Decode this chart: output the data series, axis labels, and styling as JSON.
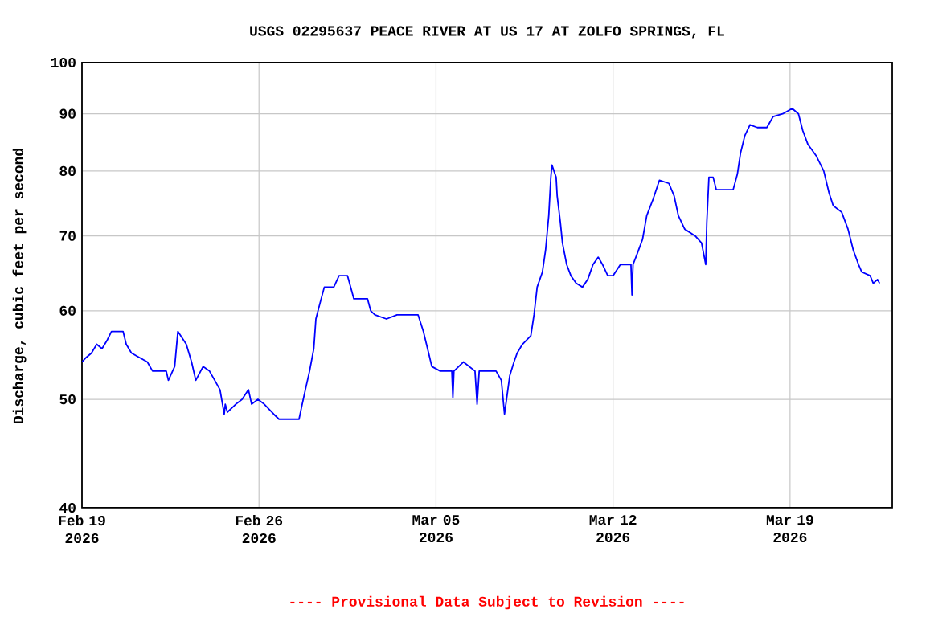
{
  "chart_data": {
    "type": "line",
    "title": "USGS 02295637 PEACE RIVER AT US 17 AT ZOLFO SPRINGS, FL",
    "ylabel": "Discharge, cubic feet per second",
    "annotations": [
      "---- Provisional Data Subject to Revision ----"
    ],
    "log": "y",
    "grid": true,
    "xlim": [
      "2026-02-19",
      "2026-03-23T01:00"
    ],
    "xticks": [
      {
        "value": "2026-02-19",
        "label": "Feb 19 2026"
      },
      {
        "value": "2026-02-26",
        "label": "Feb 26 2026"
      },
      {
        "value": "2026-03-05",
        "label": "Mar 05 2026"
      },
      {
        "value": "2026-03-12",
        "label": "Mar 12 2026"
      },
      {
        "value": "2026-03-19",
        "label": "Mar 19 2026"
      }
    ],
    "ylim": [
      40,
      100
    ],
    "yticks": [
      40,
      50,
      60,
      70,
      80,
      90,
      100
    ],
    "series": [
      {
        "color": "#0000ff",
        "x": [
          "2026-02-19T00:00",
          "2026-02-19T04:00",
          "2026-02-19T09:00",
          "2026-02-19T14:00",
          "2026-02-19T19:00",
          "2026-02-20T00:00",
          "2026-02-20T04:00",
          "2026-02-20T15:00",
          "2026-02-20T18:00",
          "2026-02-20T23:00",
          "2026-02-21T14:00",
          "2026-02-21T19:00",
          "2026-02-22T08:00",
          "2026-02-22T10:00",
          "2026-02-22T16:00",
          "2026-02-22T19:00",
          "2026-02-23T03:00",
          "2026-02-23T08:00",
          "2026-02-23T12:00",
          "2026-02-23T19:00",
          "2026-02-24T01:00",
          "2026-02-24T06:00",
          "2026-02-24T11:00",
          "2026-02-24T15:00",
          "2026-02-24T16:00",
          "2026-02-24T18:00",
          "2026-02-25T02:00",
          "2026-02-25T08:00",
          "2026-02-25T14:00",
          "2026-02-25T17:00",
          "2026-02-25T23:00",
          "2026-02-26T05:00",
          "2026-02-26T14:00",
          "2026-02-26T19:00",
          "2026-02-27T14:00",
          "2026-02-27T17:00",
          "2026-02-27T20:00",
          "2026-02-28T00:00",
          "2026-02-28T04:00",
          "2026-02-28T06:00",
          "2026-02-28T10:00",
          "2026-02-28T14:00",
          "2026-02-28T23:00",
          "2026-03-01T04:00",
          "2026-03-01T12:00",
          "2026-03-01T16:00",
          "2026-03-01T18:00",
          "2026-03-02T07:00",
          "2026-03-02T10:00",
          "2026-03-02T14:00",
          "2026-03-03T01:00",
          "2026-03-03T11:00",
          "2026-03-04T07:00",
          "2026-03-04T12:00",
          "2026-03-04T17:00",
          "2026-03-04T20:00",
          "2026-03-05T04:00",
          "2026-03-05T15:00",
          "2026-03-05T16:00",
          "2026-03-05T17:00",
          "2026-03-06T02:00",
          "2026-03-06T13:00",
          "2026-03-06T15:00",
          "2026-03-06T17:00",
          "2026-03-07T09:00",
          "2026-03-07T14:00",
          "2026-03-07T17:00",
          "2026-03-07T22:00",
          "2026-03-08T02:00",
          "2026-03-08T05:00",
          "2026-03-08T10:00",
          "2026-03-08T18:00",
          "2026-03-08T21:00",
          "2026-03-09T00:00",
          "2026-03-09T05:00",
          "2026-03-09T08:00",
          "2026-03-09T11:00",
          "2026-03-09T13:00",
          "2026-03-09T14:00",
          "2026-03-09T18:00",
          "2026-03-09T19:00",
          "2026-03-09T22:00",
          "2026-03-10T00:00",
          "2026-03-10T04:00",
          "2026-03-10T08:00",
          "2026-03-10T13:00",
          "2026-03-10T19:00",
          "2026-03-11T00:00",
          "2026-03-11T05:00",
          "2026-03-11T10:00",
          "2026-03-11T14:00",
          "2026-03-11T19:00",
          "2026-03-12T00:00",
          "2026-03-12T07:00",
          "2026-03-12T17:00",
          "2026-03-12T18:00",
          "2026-03-12T19:00",
          "2026-03-12T23:00",
          "2026-03-13T04:00",
          "2026-03-13T08:00",
          "2026-03-13T14:00",
          "2026-03-13T20:00",
          "2026-03-14T05:00",
          "2026-03-14T10:00",
          "2026-03-14T14:00",
          "2026-03-14T20:00",
          "2026-03-15T06:00",
          "2026-03-15T12:00",
          "2026-03-15T16:00",
          "2026-03-15T17:00",
          "2026-03-15T19:00",
          "2026-03-15T23:00",
          "2026-03-16T02:00",
          "2026-03-16T18:00",
          "2026-03-16T22:00",
          "2026-03-17T01:00",
          "2026-03-17T05:00",
          "2026-03-17T10:00",
          "2026-03-17T17:00",
          "2026-03-18T02:00",
          "2026-03-18T08:00",
          "2026-03-18T17:00",
          "2026-03-19T02:00",
          "2026-03-19T08:00",
          "2026-03-19T12:00",
          "2026-03-19T17:00",
          "2026-03-20T01:00",
          "2026-03-20T08:00",
          "2026-03-20T13:00",
          "2026-03-20T17:00",
          "2026-03-21T01:00",
          "2026-03-21T07:00",
          "2026-03-21T12:00",
          "2026-03-21T17:00",
          "2026-03-21T20:00",
          "2026-03-22T04:00",
          "2026-03-22T07:00",
          "2026-03-22T11:00",
          "2026-03-22T13:00"
        ],
        "values": [
          54,
          54.5,
          55,
          56,
          55.5,
          56.5,
          57.5,
          57.5,
          56,
          55,
          54,
          53,
          53,
          52,
          53.5,
          57.5,
          56,
          54,
          52,
          53.5,
          53,
          52,
          51,
          48.5,
          49.5,
          48.7,
          49.5,
          50,
          51,
          49.5,
          50,
          49.5,
          48.5,
          48,
          48,
          49.5,
          51,
          53,
          55.5,
          59,
          61,
          63,
          63,
          64.5,
          64.5,
          62.5,
          61.5,
          61.5,
          60,
          59.5,
          59,
          59.5,
          59.5,
          57.5,
          55,
          53.5,
          53,
          53,
          50.2,
          53,
          54,
          53,
          49.5,
          53,
          53,
          52,
          48.5,
          52.5,
          54,
          55,
          56,
          57,
          59.5,
          63,
          65,
          68,
          73,
          79,
          81,
          79,
          76,
          72,
          69,
          66,
          64.5,
          63.5,
          63,
          64,
          66,
          67,
          66,
          64.5,
          64.5,
          66,
          66,
          62,
          66,
          67.5,
          69.5,
          73,
          75.5,
          78.5,
          78,
          76,
          73,
          71,
          70,
          69,
          66,
          72,
          79,
          79,
          77,
          77,
          79.5,
          83,
          86,
          88,
          87.5,
          87.5,
          89.5,
          90,
          91,
          90,
          87,
          84.5,
          82.5,
          80,
          76.5,
          74.5,
          73.5,
          71,
          68,
          66,
          65,
          64.5,
          63.5,
          64,
          63.5
        ]
      }
    ]
  }
}
